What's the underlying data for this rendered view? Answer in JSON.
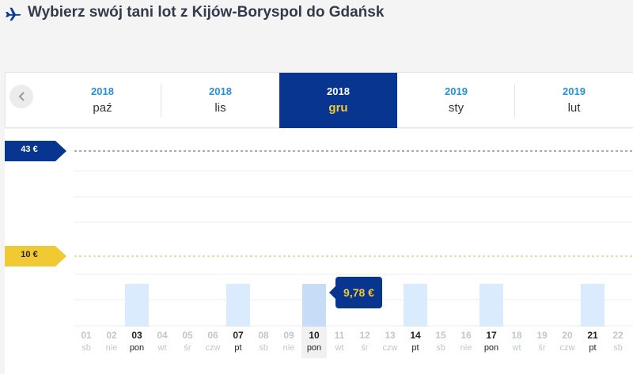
{
  "page": {
    "title": "Wybierz swój tani lot z Kijów-Boryspol do Gdańsk"
  },
  "colors": {
    "brand_dark": "#073590",
    "brand_yellow": "#f1c933",
    "year_blue": "#2b8fd5",
    "bar": "#d9ebfd"
  },
  "months": [
    {
      "year": "2018",
      "month": "paź",
      "active": false
    },
    {
      "year": "2018",
      "month": "lis",
      "active": false
    },
    {
      "year": "2018",
      "month": "gru",
      "active": true
    },
    {
      "year": "2019",
      "month": "sty",
      "active": false
    },
    {
      "year": "2019",
      "month": "lut",
      "active": false
    }
  ],
  "price_flags": {
    "high": "43 €",
    "low": "10 €"
  },
  "tooltip": {
    "price": "9,78 €"
  },
  "days": [
    {
      "num": "01",
      "wd": "sb",
      "available": false
    },
    {
      "num": "02",
      "wd": "nie",
      "available": false
    },
    {
      "num": "03",
      "wd": "pon",
      "available": true
    },
    {
      "num": "04",
      "wd": "wt",
      "available": false
    },
    {
      "num": "05",
      "wd": "śr",
      "available": false
    },
    {
      "num": "06",
      "wd": "czw",
      "available": false
    },
    {
      "num": "07",
      "wd": "pt",
      "available": true
    },
    {
      "num": "08",
      "wd": "sb",
      "available": false
    },
    {
      "num": "09",
      "wd": "nie",
      "available": false
    },
    {
      "num": "10",
      "wd": "pon",
      "available": true,
      "selected": true
    },
    {
      "num": "11",
      "wd": "wt",
      "available": false
    },
    {
      "num": "12",
      "wd": "śr",
      "available": false
    },
    {
      "num": "13",
      "wd": "czw",
      "available": false
    },
    {
      "num": "14",
      "wd": "pt",
      "available": true
    },
    {
      "num": "15",
      "wd": "sb",
      "available": false
    },
    {
      "num": "16",
      "wd": "nie",
      "available": false
    },
    {
      "num": "17",
      "wd": "pon",
      "available": true
    },
    {
      "num": "18",
      "wd": "wt",
      "available": false
    },
    {
      "num": "19",
      "wd": "śr",
      "available": false
    },
    {
      "num": "20",
      "wd": "czw",
      "available": false
    },
    {
      "num": "21",
      "wd": "pt",
      "available": true
    },
    {
      "num": "22",
      "wd": "sb",
      "available": false
    }
  ]
}
